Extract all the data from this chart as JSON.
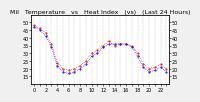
{
  "title": "Mil   Temperature   vs   Heat Index   (vs)   (Last 24 Hours)",
  "bg_color": "#f0f0f0",
  "plot_bg": "#ffffff",
  "grid_color": "#aaaaaa",
  "line1_color": "#ff0000",
  "line2_color": "#0000ff",
  "ylim": [
    10,
    55
  ],
  "yticks_left": [
    15,
    20,
    25,
    30,
    35,
    40,
    45,
    50
  ],
  "yticks_right": [
    15,
    20,
    25,
    30,
    35,
    40,
    45,
    50
  ],
  "n_hours": 24,
  "temp": [
    48,
    46,
    43,
    36,
    24,
    20,
    19,
    20,
    22,
    25,
    30,
    32,
    35,
    38,
    35,
    36,
    36,
    35,
    30,
    23,
    20,
    21,
    23,
    20
  ],
  "heat": [
    47,
    45,
    41,
    34,
    22,
    18,
    17,
    18,
    20,
    23,
    28,
    30,
    34,
    36,
    36,
    36,
    36,
    34,
    28,
    21,
    18,
    19,
    21,
    18
  ],
  "title_fontsize": 4.5,
  "tick_fontsize": 3.5,
  "linewidth": 0.5,
  "markersize": 1.0
}
